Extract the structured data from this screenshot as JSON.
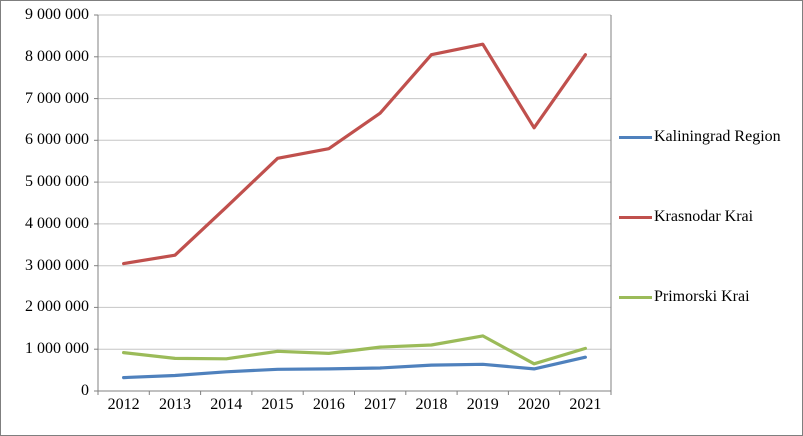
{
  "chart_data": {
    "type": "line",
    "x": [
      "2012",
      "2013",
      "2014",
      "2015",
      "2016",
      "2017",
      "2018",
      "2019",
      "2020",
      "2021"
    ],
    "series": [
      {
        "name": "Kaliningrad Region",
        "color": "#4F81BD",
        "values": [
          320000,
          370000,
          460000,
          520000,
          530000,
          550000,
          620000,
          640000,
          530000,
          810000
        ]
      },
      {
        "name": "Krasnodar Krai",
        "color": "#C0504D",
        "values": [
          3050000,
          3250000,
          4400000,
          5570000,
          5800000,
          6650000,
          8050000,
          8300000,
          6300000,
          8050000
        ]
      },
      {
        "name": "Primorski Krai",
        "color": "#9BBB59",
        "values": [
          920000,
          780000,
          770000,
          950000,
          900000,
          1050000,
          1100000,
          1320000,
          650000,
          1020000
        ]
      }
    ],
    "ylim": [
      0,
      9000000
    ],
    "ytick_step": 1000000,
    "ytick_labels": [
      "0",
      "1 000 000",
      "2 000 000",
      "3 000 000",
      "4 000 000",
      "5 000 000",
      "6 000 000",
      "7 000 000",
      "8 000 000",
      "9 000 000"
    ],
    "grid": true,
    "legend_position": "right",
    "colors": {
      "gridline": "#C6C6C6",
      "axis": "#808080",
      "border": "#7F7F7F"
    }
  }
}
